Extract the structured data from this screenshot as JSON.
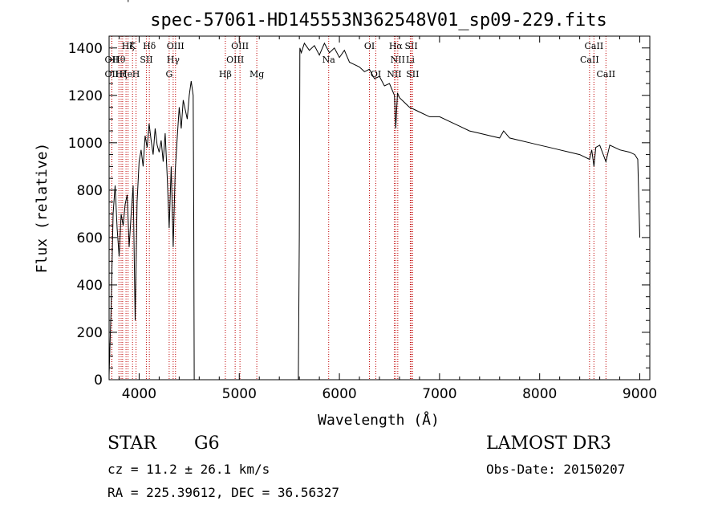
{
  "chart_data": {
    "type": "line",
    "title": "spec-57061-HD145553N362548V01_sp09-229.fits",
    "xlabel": "Wavelength (Å)",
    "ylabel": "Flux (relative)",
    "xlim": [
      3700,
      9100
    ],
    "ylim": [
      0,
      1450
    ],
    "x_ticks": [
      4000,
      5000,
      6000,
      7000,
      8000,
      9000
    ],
    "y_ticks": [
      0,
      200,
      400,
      600,
      800,
      1000,
      1200,
      1400
    ],
    "grid": false,
    "series": [
      {
        "color": "#000000",
        "segments": [
          {
            "x": [
              3700,
              3720,
              3740,
              3760,
              3780,
              3800,
              3820,
              3840,
              3860,
              3880,
              3900,
              3920,
              3940,
              3960,
              3980,
              4000,
              4020,
              4040,
              4060,
              4080,
              4100,
              4120,
              4140,
              4160,
              4180,
              4200,
              4220,
              4240,
              4260,
              4280,
              4300,
              4320,
              4340,
              4360,
              4380,
              4400,
              4420,
              4440,
              4460,
              4480,
              4500,
              4520,
              4540,
              4545,
              4550
            ],
            "y": [
              20,
              300,
              700,
              820,
              640,
              520,
              700,
              650,
              740,
              780,
              560,
              700,
              820,
              250,
              750,
              920,
              970,
              900,
              1030,
              980,
              1080,
              1010,
              950,
              1060,
              990,
              960,
              1010,
              920,
              1040,
              860,
              640,
              900,
              560,
              880,
              1020,
              1150,
              1060,
              1180,
              1140,
              1100,
              1200,
              1260,
              1200,
              700,
              0
            ]
          },
          {
            "x": [
              5590,
              5600,
              5605,
              5620,
              5650,
              5700,
              5750,
              5800,
              5850,
              5900,
              5950,
              6000,
              6050,
              6100,
              6150,
              6200,
              6250,
              6300,
              6350,
              6400,
              6450,
              6500,
              6550,
              6563,
              6580,
              6600,
              6650,
              6700,
              6750,
              6800,
              6900,
              7000,
              7100,
              7200,
              7300,
              7400,
              7500,
              7600,
              7640,
              7700,
              7800,
              7900,
              8000,
              8100,
              8200,
              8300,
              8400,
              8498,
              8520,
              8542,
              8560,
              8600,
              8662,
              8700,
              8800,
              8900,
              8950,
              8980,
              9000
            ],
            "y": [
              0,
              600,
              1400,
              1380,
              1420,
              1390,
              1410,
              1370,
              1420,
              1380,
              1400,
              1360,
              1390,
              1340,
              1330,
              1320,
              1300,
              1310,
              1270,
              1280,
              1240,
              1250,
              1200,
              1060,
              1210,
              1190,
              1170,
              1150,
              1140,
              1130,
              1110,
              1110,
              1090,
              1070,
              1050,
              1040,
              1030,
              1020,
              1050,
              1020,
              1010,
              1000,
              990,
              980,
              970,
              960,
              950,
              930,
              970,
              900,
              980,
              990,
              920,
              990,
              970,
              960,
              950,
              930,
              600
            ]
          }
        ]
      }
    ],
    "line_labels": [
      {
        "x": 3798,
        "label": "Hθ",
        "row": 1
      },
      {
        "x": 3835,
        "label": "Hη",
        "row": 3
      },
      {
        "x": 3869,
        "label": "He",
        "row": 2
      },
      {
        "x": 3889,
        "label": "Hζ",
        "row": 0
      },
      {
        "x": 3934,
        "label": "K",
        "row": 0
      },
      {
        "x": 3969,
        "label": "H",
        "row": 2
      },
      {
        "x": 4102,
        "label": "Hδ",
        "row": 0
      },
      {
        "x": 4072,
        "label": "SII",
        "row": 1
      },
      {
        "x": 4300,
        "label": "G",
        "row": 2
      },
      {
        "x": 4340,
        "label": "Hγ",
        "row": 1
      },
      {
        "x": 4363,
        "label": "OIII",
        "row": 0
      },
      {
        "x": 4861,
        "label": "Hβ",
        "row": 2
      },
      {
        "x": 4959,
        "label": "OIII",
        "row": 1
      },
      {
        "x": 5007,
        "label": "OIII",
        "row": 0
      },
      {
        "x": 5175,
        "label": "Mg",
        "row": 2
      },
      {
        "x": 5893,
        "label": "Na",
        "row": 1
      },
      {
        "x": 6300,
        "label": "OI",
        "row": 0
      },
      {
        "x": 6364,
        "label": "OI",
        "row": 2
      },
      {
        "x": 6548,
        "label": "NII",
        "row": 2
      },
      {
        "x": 6563,
        "label": "Hα",
        "row": 0
      },
      {
        "x": 6583,
        "label": "NII",
        "row": 1
      },
      {
        "x": 6708,
        "label": "Li",
        "row": 1
      },
      {
        "x": 6717,
        "label": "SII",
        "row": 0
      },
      {
        "x": 6731,
        "label": "SII",
        "row": 2
      },
      {
        "x": 8498,
        "label": "CaII",
        "row": 1
      },
      {
        "x": 8542,
        "label": "CaII",
        "row": 0
      },
      {
        "x": 8662,
        "label": "CaII",
        "row": 2
      }
    ],
    "line_color": "#c00000",
    "extra_labels": [
      {
        "x": 3727,
        "label": "OII",
        "row": 1
      },
      {
        "x": 3727,
        "label": "OII",
        "row": 2
      },
      {
        "x": 3820,
        "label": "Hζ",
        "row": 2
      }
    ]
  },
  "info": {
    "object_type": "STAR",
    "subclass": "G6",
    "survey": "LAMOST DR3",
    "redshift": "cz = 11.2 ± 26.1 km/s",
    "obs_date": "Obs-Date: 20150207",
    "coords": "RA = 225.39612, DEC =  36.56327"
  }
}
